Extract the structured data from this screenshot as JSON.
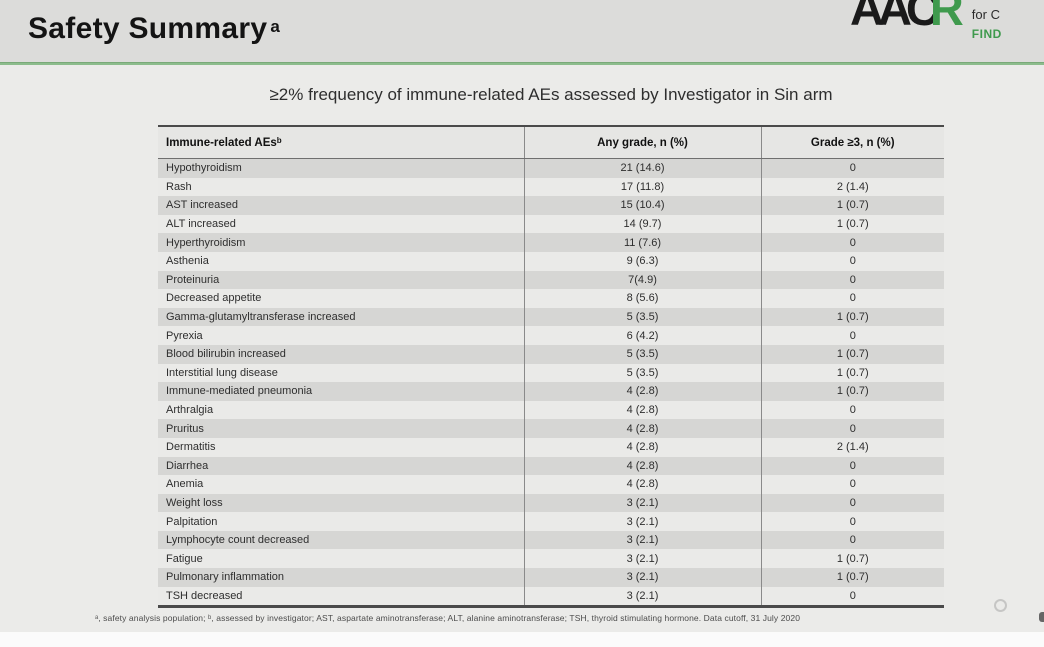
{
  "header": {
    "title": "Safety Summary",
    "title_sup": "a"
  },
  "logo": {
    "letters_black": "AAC",
    "letter_green": "R",
    "side_top": "for C",
    "side_bottom": "FIND",
    "green": "#3f9a4d"
  },
  "main": {
    "subtitle": "≥2% frequency of immune-related AEs assessed by Investigator in Sin arm",
    "footnote": "ᵃ, safety analysis population; ᵇ, assessed by investigator; AST, aspartate aminotransferase; ALT, alanine aminotransferase; TSH, thyroid stimulating hormone. Data cutoff, 31 July 2020"
  },
  "table": {
    "col_headers": [
      "Immune-related AEs",
      "Any grade, n (%)",
      "Grade ≥3, n (%)"
    ],
    "col1_sup": "b",
    "rows": [
      [
        "Hypothyroidism",
        "21 (14.6)",
        "0"
      ],
      [
        "Rash",
        "17 (11.8)",
        "2 (1.4)"
      ],
      [
        "AST increased",
        "15 (10.4)",
        "1 (0.7)"
      ],
      [
        "ALT increased",
        "14 (9.7)",
        "1 (0.7)"
      ],
      [
        "Hyperthyroidism",
        "11 (7.6)",
        "0"
      ],
      [
        "Asthenia",
        "9 (6.3)",
        "0"
      ],
      [
        "Proteinuria",
        "7(4.9)",
        "0"
      ],
      [
        "Decreased appetite",
        "8 (5.6)",
        "0"
      ],
      [
        "Gamma-glutamyltransferase increased",
        "5 (3.5)",
        "1 (0.7)"
      ],
      [
        "Pyrexia",
        "6 (4.2)",
        "0"
      ],
      [
        "Blood bilirubin increased",
        "5 (3.5)",
        "1 (0.7)"
      ],
      [
        "Interstitial lung disease",
        "5 (3.5)",
        "1 (0.7)"
      ],
      [
        "Immune-mediated pneumonia",
        "4 (2.8)",
        "1 (0.7)"
      ],
      [
        "Arthralgia",
        "4 (2.8)",
        "0"
      ],
      [
        "Pruritus",
        "4 (2.8)",
        "0"
      ],
      [
        "Dermatitis",
        "4 (2.8)",
        "2 (1.4)"
      ],
      [
        "Diarrhea",
        "4 (2.8)",
        "0"
      ],
      [
        "Anemia",
        "4 (2.8)",
        "0"
      ],
      [
        "Weight loss",
        "3 (2.1)",
        "0"
      ],
      [
        "Palpitation",
        "3 (2.1)",
        "0"
      ],
      [
        "Lymphocyte count decreased",
        "3 (2.1)",
        "0"
      ],
      [
        "Fatigue",
        "3 (2.1)",
        "1 (0.7)"
      ],
      [
        "Pulmonary inflammation",
        "3 (2.1)",
        "1 (0.7)"
      ],
      [
        "TSH decreased",
        "3 (2.1)",
        "0"
      ]
    ]
  },
  "colors": {
    "accent_green": "#8cbc8c",
    "logo_green": "#3f9a4d",
    "top_bar_bg": "#dcdcda",
    "body_bg": "#ebebe9",
    "row_dark": "#d6d6d4",
    "row_light": "#eaeae8"
  }
}
